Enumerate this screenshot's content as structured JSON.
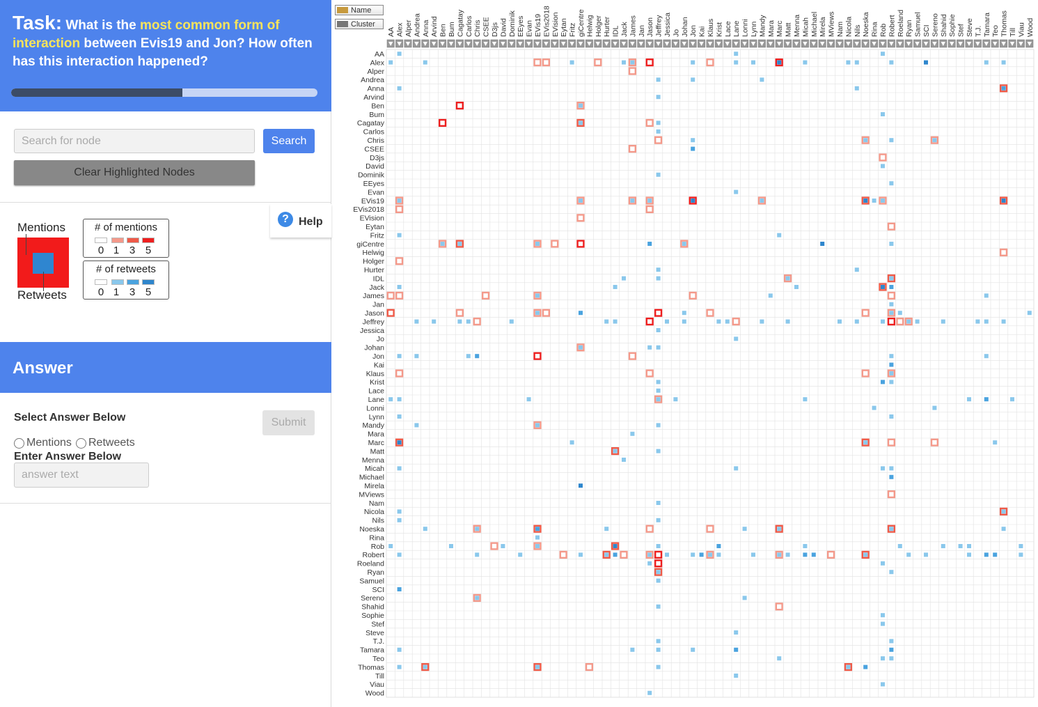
{
  "task": {
    "label": "Task:",
    "question_pre": " What is the ",
    "question_highlight": "most common form of interaction",
    "question_post": " between Evis19 and Jon? How often has this interaction happened?",
    "progress": 0.56
  },
  "search": {
    "placeholder": "Search for node",
    "button": "Search",
    "clear": "Clear Highlighted Nodes"
  },
  "legend": {
    "mentions_label": "Mentions",
    "retweets_label": "Retweets",
    "mentions_box_title": "# of mentions",
    "retweets_box_title": "# of retweets",
    "scale": [
      "0",
      "1",
      "3",
      "5"
    ],
    "mention_colors": [
      "#ffffff",
      "#f4998a",
      "#ef5a48",
      "#ee1f1f"
    ],
    "retweet_colors": [
      "#ffffff",
      "#8ac8ec",
      "#4aa3df",
      "#2e86cd"
    ]
  },
  "help": {
    "label": "Help",
    "icon": "question-circle-icon"
  },
  "answer": {
    "title": "Answer",
    "select_label": "Select Answer Below",
    "submit": "Submit",
    "options": [
      "Mentions",
      "Retweets"
    ],
    "enter_label": "Enter Answer Below",
    "input_placeholder": "answer text"
  },
  "sort_buttons": {
    "name": "Name",
    "cluster": "Cluster"
  },
  "nodes": [
    "AA",
    "Alex",
    "Alper",
    "Andrea",
    "Anna",
    "Arvind",
    "Ben",
    "Bum",
    "Cagatay",
    "Carlos",
    "Chris",
    "CSEE",
    "D3js",
    "David",
    "Dominik",
    "EEyes",
    "Evan",
    "EVis19",
    "EVis2018",
    "EVision",
    "Eytan",
    "Fritz",
    "giCentre",
    "Helwig",
    "Holger",
    "Hurter",
    "IDL",
    "Jack",
    "James",
    "Jan",
    "Jason",
    "Jeffrey",
    "Jessica",
    "Jo",
    "Johan",
    "Jon",
    "Kai",
    "Klaus",
    "Krist",
    "Lace",
    "Lane",
    "Lonni",
    "Lynn",
    "Mandy",
    "Mara",
    "Marc",
    "Matt",
    "Menna",
    "Micah",
    "Michael",
    "Mirela",
    "MViews",
    "Nam",
    "Nicola",
    "Nils",
    "Noeska",
    "Rina",
    "Rob",
    "Robert",
    "Roeland",
    "Ryan",
    "Samuel",
    "SCI",
    "Sereno",
    "Shahid",
    "Sophie",
    "Stef",
    "Steve",
    "T.J.",
    "Tamara",
    "Teo",
    "Thomas",
    "Till",
    "Viau",
    "Wood"
  ],
  "cells": [
    [
      0,
      1,
      0,
      1
    ],
    [
      0,
      57,
      0,
      1
    ],
    [
      0,
      40,
      0,
      1
    ],
    [
      1,
      0,
      0,
      1
    ],
    [
      1,
      4,
      0,
      1
    ],
    [
      1,
      17,
      2,
      0
    ],
    [
      1,
      18,
      2,
      0
    ],
    [
      1,
      21,
      0,
      1
    ],
    [
      1,
      24,
      2,
      0
    ],
    [
      1,
      27,
      0,
      1
    ],
    [
      1,
      28,
      2,
      1
    ],
    [
      1,
      30,
      4,
      0
    ],
    [
      1,
      35,
      0,
      1
    ],
    [
      1,
      37,
      2,
      0
    ],
    [
      1,
      40,
      0,
      1
    ],
    [
      1,
      42,
      0,
      1
    ],
    [
      1,
      45,
      4,
      3
    ],
    [
      1,
      48,
      0,
      1
    ],
    [
      1,
      53,
      0,
      1
    ],
    [
      1,
      54,
      0,
      1
    ],
    [
      1,
      58,
      0,
      1
    ],
    [
      1,
      62,
      0,
      3
    ],
    [
      1,
      69,
      0,
      1
    ],
    [
      1,
      71,
      0,
      1
    ],
    [
      2,
      28,
      2,
      0
    ],
    [
      3,
      31,
      0,
      1
    ],
    [
      3,
      35,
      0,
      1
    ],
    [
      3,
      43,
      0,
      1
    ],
    [
      4,
      1,
      0,
      1
    ],
    [
      4,
      54,
      0,
      1
    ],
    [
      4,
      71,
      3,
      2
    ],
    [
      5,
      31,
      0,
      1
    ],
    [
      6,
      8,
      4,
      0
    ],
    [
      6,
      22,
      2,
      1
    ],
    [
      7,
      57,
      0,
      1
    ],
    [
      8,
      6,
      4,
      0
    ],
    [
      8,
      22,
      3,
      1
    ],
    [
      8,
      30,
      2,
      0
    ],
    [
      8,
      31,
      0,
      1
    ],
    [
      9,
      31,
      0,
      1
    ],
    [
      10,
      31,
      2,
      0
    ],
    [
      10,
      35,
      0,
      1
    ],
    [
      10,
      55,
      2,
      1
    ],
    [
      10,
      58,
      0,
      1
    ],
    [
      10,
      63,
      2,
      1
    ],
    [
      11,
      28,
      2,
      0
    ],
    [
      11,
      35,
      0,
      2
    ],
    [
      12,
      57,
      2,
      0
    ],
    [
      13,
      57,
      0,
      1
    ],
    [
      14,
      31,
      0,
      1
    ],
    [
      15,
      58,
      0,
      1
    ],
    [
      16,
      40,
      0,
      1
    ],
    [
      17,
      1,
      2,
      1
    ],
    [
      17,
      22,
      2,
      1
    ],
    [
      17,
      28,
      2,
      1
    ],
    [
      17,
      30,
      2,
      1
    ],
    [
      17,
      35,
      4,
      3
    ],
    [
      17,
      43,
      2,
      1
    ],
    [
      17,
      55,
      3,
      3
    ],
    [
      17,
      56,
      0,
      1
    ],
    [
      17,
      57,
      2,
      1
    ],
    [
      17,
      71,
      3,
      3
    ],
    [
      18,
      1,
      2,
      0
    ],
    [
      18,
      30,
      2,
      0
    ],
    [
      19,
      22,
      2,
      0
    ],
    [
      20,
      58,
      2,
      0
    ],
    [
      21,
      1,
      0,
      1
    ],
    [
      21,
      45,
      0,
      1
    ],
    [
      22,
      6,
      2,
      1
    ],
    [
      22,
      8,
      3,
      1
    ],
    [
      22,
      17,
      2,
      1
    ],
    [
      22,
      19,
      2,
      0
    ],
    [
      22,
      22,
      4,
      0
    ],
    [
      22,
      30,
      0,
      2
    ],
    [
      22,
      34,
      2,
      1
    ],
    [
      22,
      50,
      0,
      3
    ],
    [
      22,
      58,
      0,
      1
    ],
    [
      23,
      71,
      2,
      0
    ],
    [
      24,
      1,
      2,
      0
    ],
    [
      25,
      31,
      0,
      1
    ],
    [
      25,
      54,
      0,
      1
    ],
    [
      26,
      27,
      0,
      1
    ],
    [
      26,
      31,
      0,
      1
    ],
    [
      26,
      46,
      2,
      1
    ],
    [
      26,
      58,
      3,
      1
    ],
    [
      27,
      1,
      0,
      1
    ],
    [
      27,
      26,
      0,
      1
    ],
    [
      27,
      47,
      0,
      1
    ],
    [
      27,
      57,
      3,
      3
    ],
    [
      27,
      58,
      0,
      2
    ],
    [
      28,
      0,
      2,
      0
    ],
    [
      28,
      1,
      2,
      0
    ],
    [
      28,
      11,
      2,
      0
    ],
    [
      28,
      17,
      2,
      1
    ],
    [
      28,
      35,
      2,
      0
    ],
    [
      28,
      44,
      0,
      1
    ],
    [
      28,
      69,
      0,
      1
    ],
    [
      28,
      58,
      2,
      0
    ],
    [
      29,
      58,
      0,
      1
    ],
    [
      30,
      0,
      3,
      0
    ],
    [
      30,
      8,
      2,
      0
    ],
    [
      30,
      17,
      2,
      1
    ],
    [
      30,
      18,
      2,
      0
    ],
    [
      30,
      22,
      0,
      2
    ],
    [
      30,
      31,
      4,
      0
    ],
    [
      30,
      34,
      0,
      1
    ],
    [
      30,
      37,
      2,
      0
    ],
    [
      30,
      55,
      2,
      0
    ],
    [
      30,
      58,
      2,
      1
    ],
    [
      30,
      59,
      0,
      1
    ],
    [
      30,
      74,
      0,
      1
    ],
    [
      31,
      3,
      0,
      1
    ],
    [
      31,
      5,
      0,
      1
    ],
    [
      31,
      8,
      0,
      1
    ],
    [
      31,
      9,
      0,
      1
    ],
    [
      31,
      10,
      2,
      0
    ],
    [
      31,
      14,
      0,
      1
    ],
    [
      31,
      25,
      0,
      1
    ],
    [
      31,
      26,
      0,
      1
    ],
    [
      31,
      30,
      4,
      0
    ],
    [
      31,
      32,
      0,
      1
    ],
    [
      31,
      34,
      0,
      1
    ],
    [
      31,
      38,
      0,
      1
    ],
    [
      31,
      39,
      0,
      1
    ],
    [
      31,
      40,
      2,
      0
    ],
    [
      31,
      43,
      0,
      1
    ],
    [
      31,
      46,
      0,
      1
    ],
    [
      31,
      52,
      0,
      1
    ],
    [
      31,
      54,
      0,
      1
    ],
    [
      31,
      57,
      0,
      1
    ],
    [
      31,
      58,
      4,
      0
    ],
    [
      31,
      59,
      2,
      0
    ],
    [
      31,
      60,
      2,
      1
    ],
    [
      31,
      61,
      0,
      1
    ],
    [
      31,
      64,
      0,
      1
    ],
    [
      31,
      68,
      0,
      1
    ],
    [
      31,
      69,
      0,
      1
    ],
    [
      31,
      71,
      0,
      1
    ],
    [
      32,
      31,
      0,
      1
    ],
    [
      33,
      40,
      0,
      1
    ],
    [
      34,
      22,
      2,
      1
    ],
    [
      34,
      30,
      0,
      1
    ],
    [
      34,
      31,
      0,
      1
    ],
    [
      35,
      1,
      0,
      1
    ],
    [
      35,
      3,
      0,
      1
    ],
    [
      35,
      9,
      0,
      1
    ],
    [
      35,
      10,
      0,
      2
    ],
    [
      35,
      17,
      4,
      0
    ],
    [
      35,
      28,
      2,
      0
    ],
    [
      35,
      58,
      0,
      1
    ],
    [
      35,
      69,
      0,
      1
    ],
    [
      36,
      58,
      0,
      2
    ],
    [
      37,
      1,
      2,
      0
    ],
    [
      37,
      30,
      2,
      0
    ],
    [
      37,
      55,
      2,
      0
    ],
    [
      37,
      58,
      2,
      1
    ],
    [
      38,
      31,
      0,
      1
    ],
    [
      38,
      57,
      0,
      2
    ],
    [
      38,
      58,
      0,
      1
    ],
    [
      39,
      31,
      0,
      1
    ],
    [
      40,
      0,
      0,
      1
    ],
    [
      40,
      1,
      0,
      1
    ],
    [
      40,
      16,
      0,
      1
    ],
    [
      40,
      31,
      2,
      1
    ],
    [
      40,
      33,
      0,
      1
    ],
    [
      40,
      48,
      0,
      1
    ],
    [
      40,
      67,
      0,
      1
    ],
    [
      40,
      69,
      0,
      2
    ],
    [
      40,
      72,
      0,
      1
    ],
    [
      41,
      56,
      0,
      1
    ],
    [
      41,
      63,
      0,
      1
    ],
    [
      42,
      1,
      0,
      1
    ],
    [
      42,
      58,
      0,
      1
    ],
    [
      43,
      3,
      0,
      1
    ],
    [
      43,
      17,
      2,
      1
    ],
    [
      43,
      31,
      0,
      1
    ],
    [
      44,
      28,
      0,
      1
    ],
    [
      45,
      1,
      3,
      3
    ],
    [
      45,
      21,
      0,
      1
    ],
    [
      45,
      55,
      3,
      1
    ],
    [
      45,
      58,
      2,
      0
    ],
    [
      45,
      63,
      2,
      0
    ],
    [
      45,
      70,
      0,
      1
    ],
    [
      46,
      26,
      3,
      1
    ],
    [
      46,
      31,
      0,
      1
    ],
    [
      47,
      27,
      0,
      1
    ],
    [
      48,
      1,
      0,
      1
    ],
    [
      48,
      40,
      0,
      1
    ],
    [
      48,
      57,
      0,
      1
    ],
    [
      48,
      58,
      0,
      1
    ],
    [
      49,
      58,
      0,
      2
    ],
    [
      50,
      22,
      0,
      3
    ],
    [
      51,
      58,
      2,
      0
    ],
    [
      52,
      31,
      0,
      1
    ],
    [
      53,
      1,
      0,
      1
    ],
    [
      53,
      71,
      3,
      1
    ],
    [
      54,
      1,
      0,
      1
    ],
    [
      54,
      31,
      0,
      1
    ],
    [
      55,
      4,
      0,
      1
    ],
    [
      55,
      10,
      2,
      1
    ],
    [
      55,
      17,
      3,
      2
    ],
    [
      55,
      25,
      0,
      1
    ],
    [
      55,
      30,
      2,
      0
    ],
    [
      55,
      37,
      2,
      0
    ],
    [
      55,
      41,
      0,
      1
    ],
    [
      55,
      45,
      3,
      1
    ],
    [
      55,
      58,
      3,
      1
    ],
    [
      55,
      71,
      0,
      1
    ],
    [
      56,
      17,
      0,
      1
    ],
    [
      57,
      0,
      0,
      1
    ],
    [
      57,
      7,
      0,
      1
    ],
    [
      57,
      12,
      2,
      0
    ],
    [
      57,
      13,
      0,
      1
    ],
    [
      57,
      17,
      2,
      1
    ],
    [
      57,
      26,
      3,
      3
    ],
    [
      57,
      31,
      0,
      1
    ],
    [
      57,
      38,
      0,
      2
    ],
    [
      57,
      48,
      0,
      1
    ],
    [
      57,
      59,
      0,
      1
    ],
    [
      57,
      64,
      0,
      1
    ],
    [
      57,
      66,
      0,
      1
    ],
    [
      57,
      67,
      0,
      1
    ],
    [
      57,
      73,
      0,
      1
    ],
    [
      58,
      1,
      0,
      1
    ],
    [
      58,
      10,
      0,
      1
    ],
    [
      58,
      15,
      0,
      1
    ],
    [
      58,
      20,
      2,
      0
    ],
    [
      58,
      22,
      0,
      1
    ],
    [
      58,
      25,
      3,
      1
    ],
    [
      58,
      26,
      0,
      2
    ],
    [
      58,
      27,
      2,
      0
    ],
    [
      58,
      30,
      2,
      1
    ],
    [
      58,
      31,
      4,
      0
    ],
    [
      58,
      32,
      0,
      1
    ],
    [
      58,
      35,
      0,
      1
    ],
    [
      58,
      36,
      0,
      2
    ],
    [
      58,
      37,
      2,
      1
    ],
    [
      58,
      38,
      0,
      1
    ],
    [
      58,
      42,
      0,
      1
    ],
    [
      58,
      45,
      2,
      1
    ],
    [
      58,
      46,
      0,
      1
    ],
    [
      58,
      48,
      0,
      2
    ],
    [
      58,
      49,
      0,
      2
    ],
    [
      58,
      51,
      2,
      0
    ],
    [
      58,
      55,
      3,
      1
    ],
    [
      58,
      60,
      0,
      1
    ],
    [
      58,
      62,
      0,
      1
    ],
    [
      58,
      67,
      0,
      1
    ],
    [
      58,
      69,
      0,
      2
    ],
    [
      58,
      70,
      0,
      2
    ],
    [
      58,
      73,
      0,
      1
    ],
    [
      59,
      30,
      0,
      1
    ],
    [
      59,
      31,
      4,
      0
    ],
    [
      59,
      57,
      0,
      1
    ],
    [
      60,
      31,
      3,
      1
    ],
    [
      60,
      58,
      0,
      1
    ],
    [
      61,
      31,
      0,
      1
    ],
    [
      62,
      1,
      0,
      2
    ],
    [
      63,
      10,
      2,
      1
    ],
    [
      63,
      41,
      0,
      1
    ],
    [
      64,
      31,
      0,
      1
    ],
    [
      64,
      45,
      2,
      0
    ],
    [
      65,
      57,
      0,
      1
    ],
    [
      66,
      57,
      0,
      1
    ],
    [
      67,
      40,
      0,
      1
    ],
    [
      68,
      31,
      0,
      1
    ],
    [
      68,
      58,
      0,
      1
    ],
    [
      69,
      1,
      0,
      1
    ],
    [
      69,
      28,
      0,
      1
    ],
    [
      69,
      31,
      0,
      1
    ],
    [
      69,
      35,
      0,
      1
    ],
    [
      69,
      40,
      0,
      2
    ],
    [
      69,
      58,
      0,
      2
    ],
    [
      70,
      45,
      0,
      1
    ],
    [
      70,
      57,
      0,
      1
    ],
    [
      70,
      58,
      0,
      1
    ],
    [
      71,
      1,
      0,
      1
    ],
    [
      71,
      4,
      3,
      1
    ],
    [
      71,
      17,
      3,
      1
    ],
    [
      71,
      23,
      2,
      0
    ],
    [
      71,
      31,
      0,
      1
    ],
    [
      71,
      53,
      3,
      1
    ],
    [
      71,
      55,
      0,
      2
    ],
    [
      72,
      40,
      0,
      1
    ],
    [
      73,
      57,
      0,
      1
    ],
    [
      74,
      30,
      0,
      1
    ]
  ]
}
